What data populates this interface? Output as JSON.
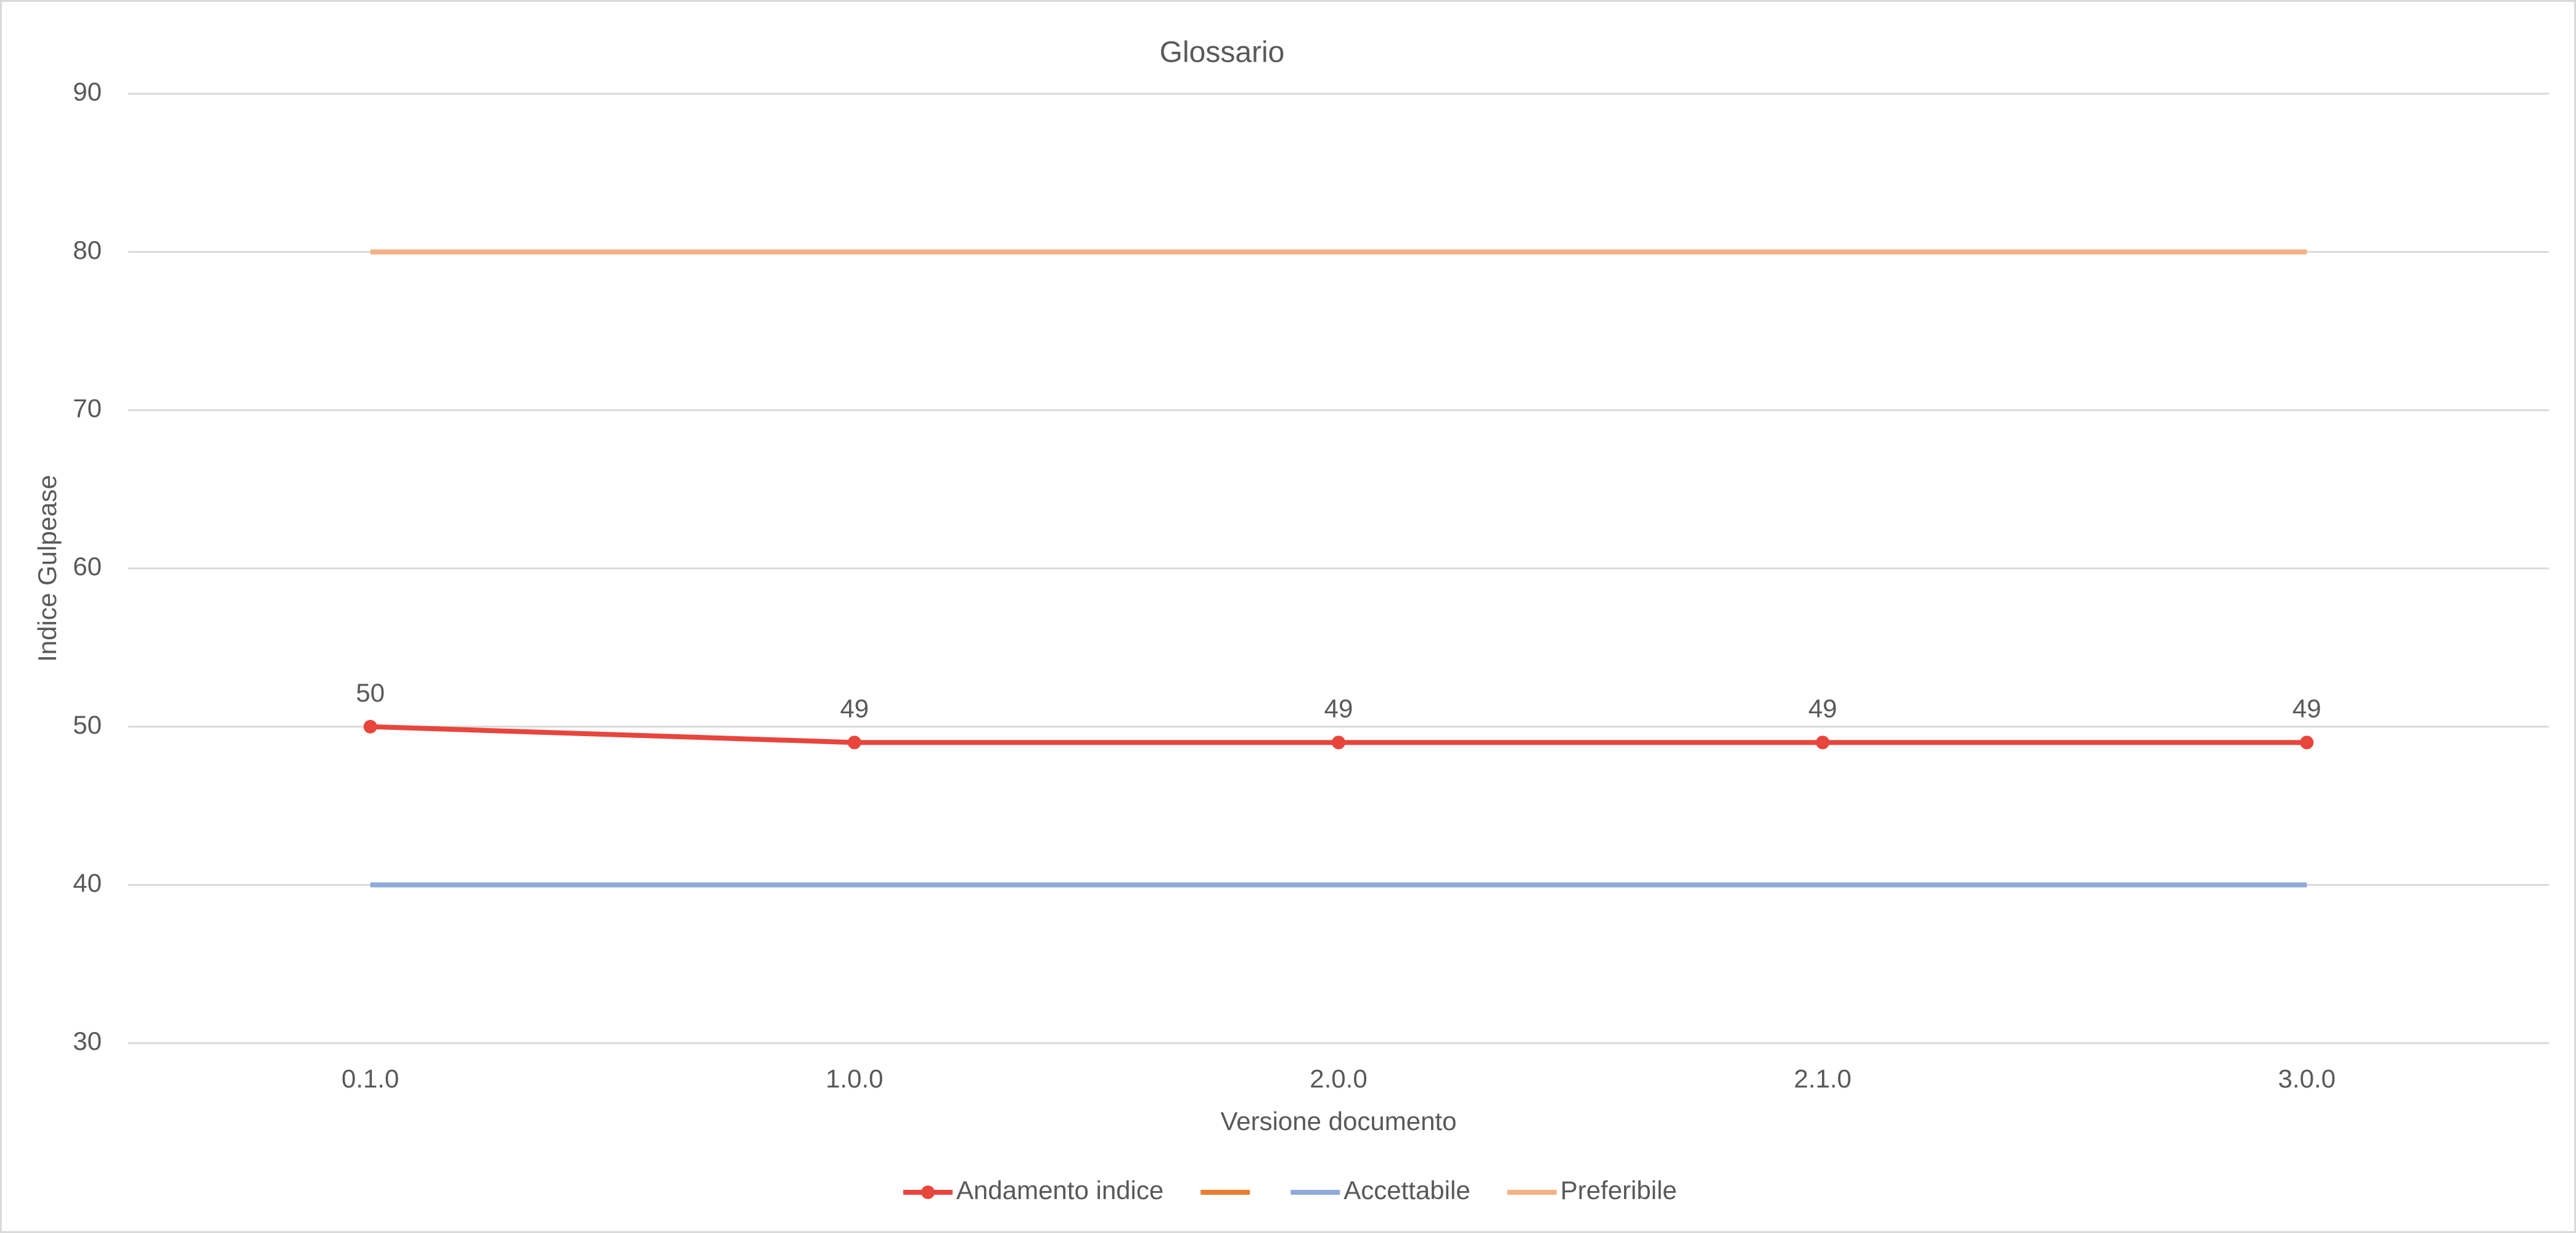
{
  "chart_data": {
    "type": "line",
    "title": "Glossario",
    "x_label": "Versione documento",
    "y_label": "Indice Gulpease",
    "categories": [
      "0.1.0",
      "1.0.0",
      "2.0.0",
      "2.1.0",
      "3.0.0"
    ],
    "series": [
      {
        "name": "Andamento indice",
        "color": "#e8453c",
        "values": [
          50,
          49,
          49,
          49,
          49
        ],
        "markers": true,
        "data_labels": true
      },
      {
        "color": "#ed7d31",
        "values": [
          null,
          null,
          null,
          null,
          null
        ]
      },
      {
        "name": "Accettabile",
        "color": "#8faadc",
        "values": [
          40,
          40,
          40,
          40,
          40
        ]
      },
      {
        "name": "Preferibile",
        "color": "#f4b183",
        "values": [
          80,
          80,
          80,
          80,
          80
        ]
      }
    ],
    "ylim": [
      30,
      90
    ],
    "yticks": [
      30,
      40,
      50,
      60,
      70,
      80,
      90
    ],
    "grid": true,
    "legend": "bottom"
  }
}
